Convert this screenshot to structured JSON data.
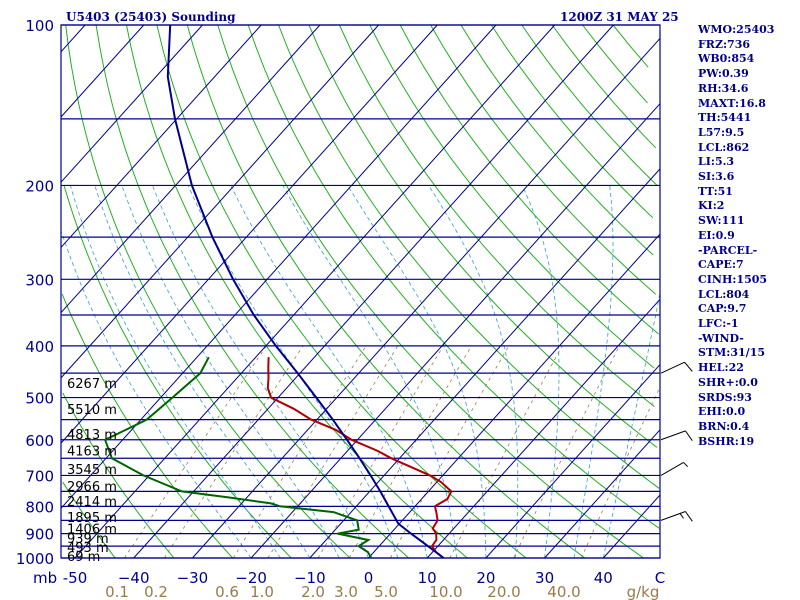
{
  "header": {
    "title": "U5403 (25403) Sounding",
    "valid": "1200Z 31 MAY 25"
  },
  "indices": [
    "WMO:25403",
    "FRZ:736",
    "WB0:854",
    "PW:0.39",
    "RH:34.6",
    "MAXT:16.8",
    "TH:5441",
    "L57:9.5",
    "LCL:862",
    "LI:5.3",
    "SI:3.6",
    "TT:51",
    "KI:2",
    "SW:111",
    "EI:0.9",
    "-PARCEL-",
    "CAPE:7",
    "CINH:1505",
    "LCL:804",
    "CAP:9.7",
    "LFC:-1",
    "-WIND-",
    "STM:31/15",
    "HEL:22",
    "SHR+:0.0",
    "SRDS:93",
    "EHI:0.0",
    "BRN:0.4",
    "BSHR:19"
  ],
  "chart_data": {
    "type": "line",
    "diagram": "skew-T log-P",
    "y_scale": "log",
    "ylim": [
      1000,
      100
    ],
    "xlim": [
      -50,
      50
    ],
    "ylabel": "mb",
    "xlabel": "C",
    "pressure_ticks": [
      1000,
      900,
      800,
      700,
      600,
      500,
      400,
      300,
      200,
      100
    ],
    "temperature_ticks": [
      -50,
      -40,
      -30,
      -20,
      -10,
      0,
      10,
      20,
      30,
      40
    ],
    "temperature_tick_labels": [
      "-50",
      "−40",
      "−30",
      "−20",
      "−10",
      "0",
      "10",
      "20",
      "30",
      "40"
    ],
    "mixing_ratio_unit": "g/kg",
    "mixing_ratio_ticks": [
      0.1,
      0.2,
      0.6,
      1.0,
      2.0,
      3.0,
      5.0,
      10.0,
      20.0,
      40.0
    ],
    "mixing_ratio_tick_labels": [
      "0.1",
      "0.2",
      "0.6",
      "1.0",
      "2.0",
      "3.0",
      "5.0",
      "10.0",
      "20.0",
      "40.0"
    ],
    "height_labels": [
      {
        "p": 992,
        "label": "69 m"
      },
      {
        "p": 953,
        "label": "493 m"
      },
      {
        "p": 918,
        "label": "939 m"
      },
      {
        "p": 880,
        "label": "1406 m"
      },
      {
        "p": 837,
        "label": "1895 m"
      },
      {
        "p": 782,
        "label": "2414 m"
      },
      {
        "p": 733,
        "label": "2966 m"
      },
      {
        "p": 681,
        "label": "3545 m"
      },
      {
        "p": 629,
        "label": "4163 m"
      },
      {
        "p": 585,
        "label": "4813 m"
      },
      {
        "p": 525,
        "label": "5510 m"
      },
      {
        "p": 470,
        "label": "6267 m"
      }
    ],
    "series": [
      {
        "kind": "temperature",
        "color": "#b00000",
        "points": [
          [
            1000,
            12.8
          ],
          [
            975,
            10.6
          ],
          [
            950,
            9.0
          ],
          [
            925,
            8.8
          ],
          [
            900,
            7.8
          ],
          [
            880,
            6.4
          ],
          [
            850,
            6.0
          ],
          [
            820,
            4.5
          ],
          [
            800,
            3.4
          ],
          [
            775,
            4.4
          ],
          [
            750,
            3.9
          ],
          [
            720,
            0.7
          ],
          [
            700,
            -2.2
          ],
          [
            680,
            -5.8
          ],
          [
            650,
            -11.4
          ],
          [
            630,
            -14.8
          ],
          [
            600,
            -21.0
          ],
          [
            575,
            -25.2
          ],
          [
            550,
            -31.0
          ],
          [
            525,
            -35.6
          ],
          [
            500,
            -41.2
          ],
          [
            480,
            -43.2
          ],
          [
            460,
            -44.6
          ],
          [
            440,
            -46.2
          ],
          [
            420,
            -47.8
          ]
        ]
      },
      {
        "kind": "dewpoint",
        "color": "#006400",
        "points": [
          [
            1000,
            0.5
          ],
          [
            975,
            -1.0
          ],
          [
            950,
            -3.5
          ],
          [
            925,
            -2.8
          ],
          [
            900,
            -9.0
          ],
          [
            885,
            -6.0
          ],
          [
            850,
            -7.7
          ],
          [
            820,
            -13.0
          ],
          [
            800,
            -23.0
          ],
          [
            790,
            -25.0
          ],
          [
            770,
            -33.0
          ],
          [
            750,
            -42.0
          ],
          [
            700,
            -51.0
          ],
          [
            650,
            -59.0
          ],
          [
            600,
            -63.0
          ],
          [
            575,
            -61.0
          ],
          [
            550,
            -59.0
          ],
          [
            500,
            -58.0
          ],
          [
            450,
            -57.0
          ],
          [
            420,
            -58.0
          ]
        ]
      },
      {
        "kind": "parcel",
        "color": "#00008b",
        "points": [
          [
            1000,
            12.8
          ],
          [
            950,
            8.3
          ],
          [
            900,
            3.5
          ],
          [
            862,
            -0.2
          ],
          [
            804,
            -4.2
          ],
          [
            750,
            -8.2
          ],
          [
            700,
            -12.3
          ],
          [
            650,
            -16.8
          ],
          [
            600,
            -21.8
          ],
          [
            550,
            -27.3
          ],
          [
            500,
            -33.5
          ],
          [
            450,
            -40.4
          ],
          [
            400,
            -48.3
          ],
          [
            350,
            -56.8
          ],
          [
            300,
            -65.8
          ],
          [
            250,
            -75.8
          ],
          [
            200,
            -87.2
          ],
          [
            150,
            -100.3
          ],
          [
            125,
            -108.0
          ],
          [
            100,
            -115.5
          ]
        ]
      }
    ],
    "wind_barbs": [
      {
        "p": 850,
        "dir": 250,
        "speed_kt": 15
      },
      {
        "p": 700,
        "dir": 240,
        "speed_kt": 5
      },
      {
        "p": 600,
        "dir": 250,
        "speed_kt": 10
      },
      {
        "p": 450,
        "dir": 245,
        "speed_kt": 10
      }
    ],
    "legend": "none",
    "grid": true
  }
}
